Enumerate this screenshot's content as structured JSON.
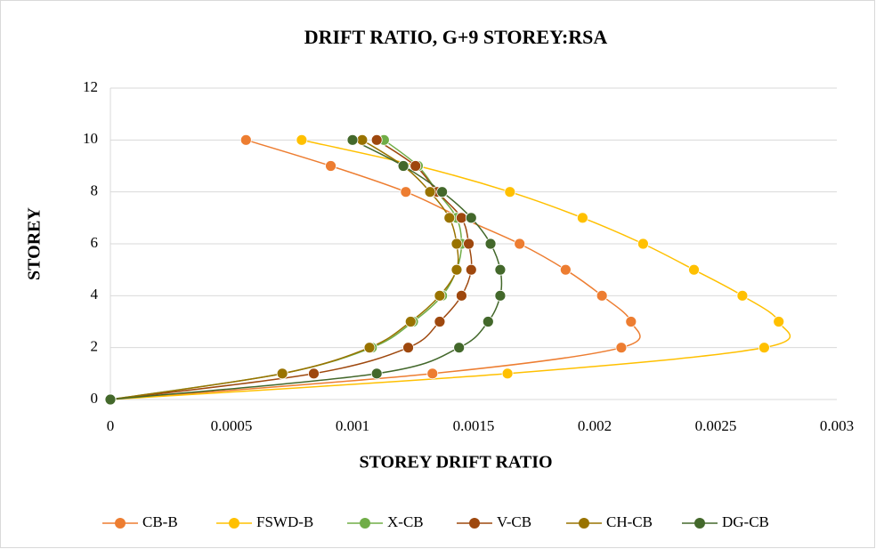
{
  "chart_data": {
    "type": "line",
    "title": "DRIFT RATIO, G+9 STOREY:RSA",
    "x_label": "STOREY DRIFT RATIO",
    "y_label": "STOREY",
    "xlim": [
      0,
      0.003
    ],
    "xticks": [
      0,
      0.0005,
      0.001,
      0.0015,
      0.002,
      0.0025,
      0.003
    ],
    "ylim": [
      0,
      12
    ],
    "yticks": [
      0,
      2,
      4,
      6,
      8,
      10,
      12
    ],
    "grid": true,
    "legend": "bottom",
    "series": [
      {
        "name": "CB-B",
        "color": "#ed7d31",
        "x": [
          0,
          0.00133,
          0.00211,
          0.00215,
          0.00203,
          0.00188,
          0.00169,
          0.00145,
          0.00122,
          0.00091,
          0.00056
        ],
        "values": [
          0,
          1,
          2,
          3,
          4,
          5,
          6,
          7,
          8,
          9,
          10
        ]
      },
      {
        "name": "FSWD-B",
        "color": "#ffc000",
        "x": [
          0,
          0.00164,
          0.0027,
          0.00276,
          0.00261,
          0.00241,
          0.0022,
          0.00195,
          0.00165,
          0.00127,
          0.00079
        ],
        "values": [
          0,
          1,
          2,
          3,
          4,
          5,
          6,
          7,
          8,
          9,
          10
        ]
      },
      {
        "name": "X-CB",
        "color": "#70ad47",
        "x": [
          0,
          0.00071,
          0.00108,
          0.00125,
          0.00137,
          0.00143,
          0.00145,
          0.00143,
          0.00135,
          0.00127,
          0.00113
        ],
        "values": [
          0,
          1,
          2,
          3,
          4,
          5,
          6,
          7,
          8,
          9,
          10
        ]
      },
      {
        "name": "V-CB",
        "color": "#9e480e",
        "x": [
          0,
          0.00084,
          0.00123,
          0.00136,
          0.00145,
          0.00149,
          0.00148,
          0.00145,
          0.00135,
          0.00126,
          0.0011
        ],
        "values": [
          0,
          1,
          2,
          3,
          4,
          5,
          6,
          7,
          8,
          9,
          10
        ]
      },
      {
        "name": "CH-CB",
        "color": "#997300",
        "x": [
          0,
          0.00071,
          0.00107,
          0.00124,
          0.00136,
          0.00143,
          0.00143,
          0.0014,
          0.00132,
          0.00121,
          0.00104
        ],
        "values": [
          0,
          1,
          2,
          3,
          4,
          5,
          6,
          7,
          8,
          9,
          10
        ]
      },
      {
        "name": "DG-CB",
        "color": "#43682b",
        "x": [
          0,
          0.0011,
          0.00144,
          0.00156,
          0.00161,
          0.00161,
          0.00157,
          0.00149,
          0.00137,
          0.00121,
          0.001
        ],
        "values": [
          0,
          1,
          2,
          3,
          4,
          5,
          6,
          7,
          8,
          9,
          10
        ]
      }
    ]
  }
}
